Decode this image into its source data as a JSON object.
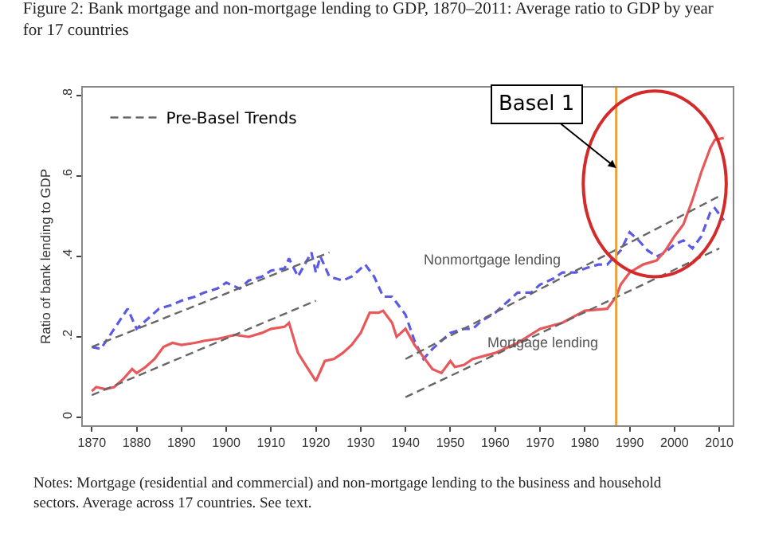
{
  "chart_data": {
    "type": "line",
    "title": "Figure 2: Bank mortgage and non-mortgage lending to GDP, 1870–2011: Average ratio to GDP by year for 17 countries",
    "ylabel": "Ratio of bank lending to GDP",
    "xlim": [
      1868,
      2013
    ],
    "xticks": [
      1870,
      1880,
      1890,
      1900,
      1910,
      1920,
      1930,
      1940,
      1950,
      1960,
      1970,
      1980,
      1990,
      2000,
      2010
    ],
    "ylim": [
      -0.02,
      0.82
    ],
    "yticks": [
      0,
      {
        "value": 0.2,
        "label": ".2"
      },
      {
        "value": 0.4,
        "label": ".4"
      },
      {
        "value": 0.6,
        "label": ".6"
      },
      {
        "value": 0.8,
        "label": ".8"
      }
    ],
    "grid": false,
    "legend": "top left",
    "series": [
      {
        "color": "#5a5ae6",
        "line_style": "dashed",
        "x": [
          1870,
          1872,
          1875,
          1878,
          1880,
          1882,
          1885,
          1888,
          1890,
          1893,
          1895,
          1898,
          1900,
          1903,
          1905,
          1908,
          1910,
          1913,
          1914,
          1916,
          1919,
          1920,
          1921,
          1923,
          1926,
          1928,
          1931,
          1933,
          1935,
          1937,
          1940,
          1942,
          1944,
          1946,
          1948,
          1950,
          1953,
          1955,
          1957,
          1960,
          1963,
          1965,
          1968,
          1970,
          1973,
          1975,
          1978,
          1980,
          1983,
          1985,
          1988,
          1990,
          1992,
          1994,
          1996,
          1998,
          2000,
          2002,
          2004,
          2006,
          2008,
          2009,
          2011
        ],
        "values": [
          0.175,
          0.17,
          0.22,
          0.27,
          0.22,
          0.24,
          0.27,
          0.28,
          0.29,
          0.3,
          0.31,
          0.32,
          0.335,
          0.32,
          0.34,
          0.35,
          0.365,
          0.37,
          0.395,
          0.35,
          0.41,
          0.36,
          0.4,
          0.35,
          0.34,
          0.35,
          0.38,
          0.35,
          0.3,
          0.3,
          0.255,
          0.19,
          0.145,
          0.17,
          0.19,
          0.21,
          0.22,
          0.22,
          0.24,
          0.26,
          0.29,
          0.31,
          0.31,
          0.33,
          0.345,
          0.36,
          0.36,
          0.37,
          0.38,
          0.38,
          0.415,
          0.46,
          0.44,
          0.415,
          0.4,
          0.41,
          0.43,
          0.44,
          0.42,
          0.45,
          0.51,
          0.52,
          0.49
        ]
      },
      {
        "color": "#e8585a",
        "line_style": "solid",
        "x": [
          1870,
          1871,
          1873,
          1875,
          1877,
          1879,
          1880,
          1882,
          1884,
          1886,
          1888,
          1890,
          1893,
          1895,
          1898,
          1900,
          1902,
          1905,
          1908,
          1910,
          1913,
          1914,
          1916,
          1918,
          1920,
          1922,
          1924,
          1926,
          1928,
          1930,
          1932,
          1934,
          1935,
          1937,
          1938,
          1940,
          1942,
          1944,
          1946,
          1948,
          1950,
          1951,
          1953,
          1955,
          1960,
          1965,
          1970,
          1975,
          1980,
          1985,
          1987,
          1988,
          1990,
          1993,
          1996,
          1998,
          2000,
          2002,
          2004,
          2006,
          2008,
          2009,
          2011
        ],
        "values": [
          0.065,
          0.075,
          0.07,
          0.075,
          0.095,
          0.12,
          0.11,
          0.125,
          0.145,
          0.175,
          0.185,
          0.18,
          0.185,
          0.19,
          0.195,
          0.2,
          0.205,
          0.2,
          0.21,
          0.22,
          0.225,
          0.235,
          0.16,
          0.125,
          0.09,
          0.14,
          0.145,
          0.16,
          0.18,
          0.21,
          0.26,
          0.26,
          0.265,
          0.235,
          0.2,
          0.22,
          0.18,
          0.15,
          0.12,
          0.11,
          0.14,
          0.125,
          0.13,
          0.145,
          0.16,
          0.185,
          0.22,
          0.235,
          0.265,
          0.27,
          0.3,
          0.33,
          0.36,
          0.38,
          0.39,
          0.415,
          0.45,
          0.48,
          0.54,
          0.61,
          0.67,
          0.69,
          0.695
        ]
      },
      {
        "name": "Pre-Basel Trends",
        "color": "#666666",
        "line_style": "dashed",
        "x": [
          1870,
          1923
        ],
        "values": [
          0.175,
          0.41
        ]
      },
      {
        "color": "#666666",
        "line_style": "dashed",
        "x": [
          1870,
          1920
        ],
        "values": [
          0.055,
          0.29
        ]
      },
      {
        "color": "#666666",
        "line_style": "dashed",
        "x": [
          1940,
          2010
        ],
        "values": [
          0.145,
          0.55
        ]
      },
      {
        "color": "#666666",
        "line_style": "dashed",
        "x": [
          1940,
          2010
        ],
        "values": [
          0.05,
          0.42
        ]
      }
    ],
    "ref_lines": [
      {
        "axis": "x",
        "value": 1987,
        "color": "#e8a33d"
      }
    ],
    "annotations": [
      {
        "text": "Basel 1",
        "x": 1987,
        "y": 0.62
      },
      "Nonmortgage lending",
      "Mortgage lending",
      "Notes: Mortgage (residential and commercial) and non-mortgage lending to the business and household sectors. Average across 17 countries. See text."
    ]
  }
}
